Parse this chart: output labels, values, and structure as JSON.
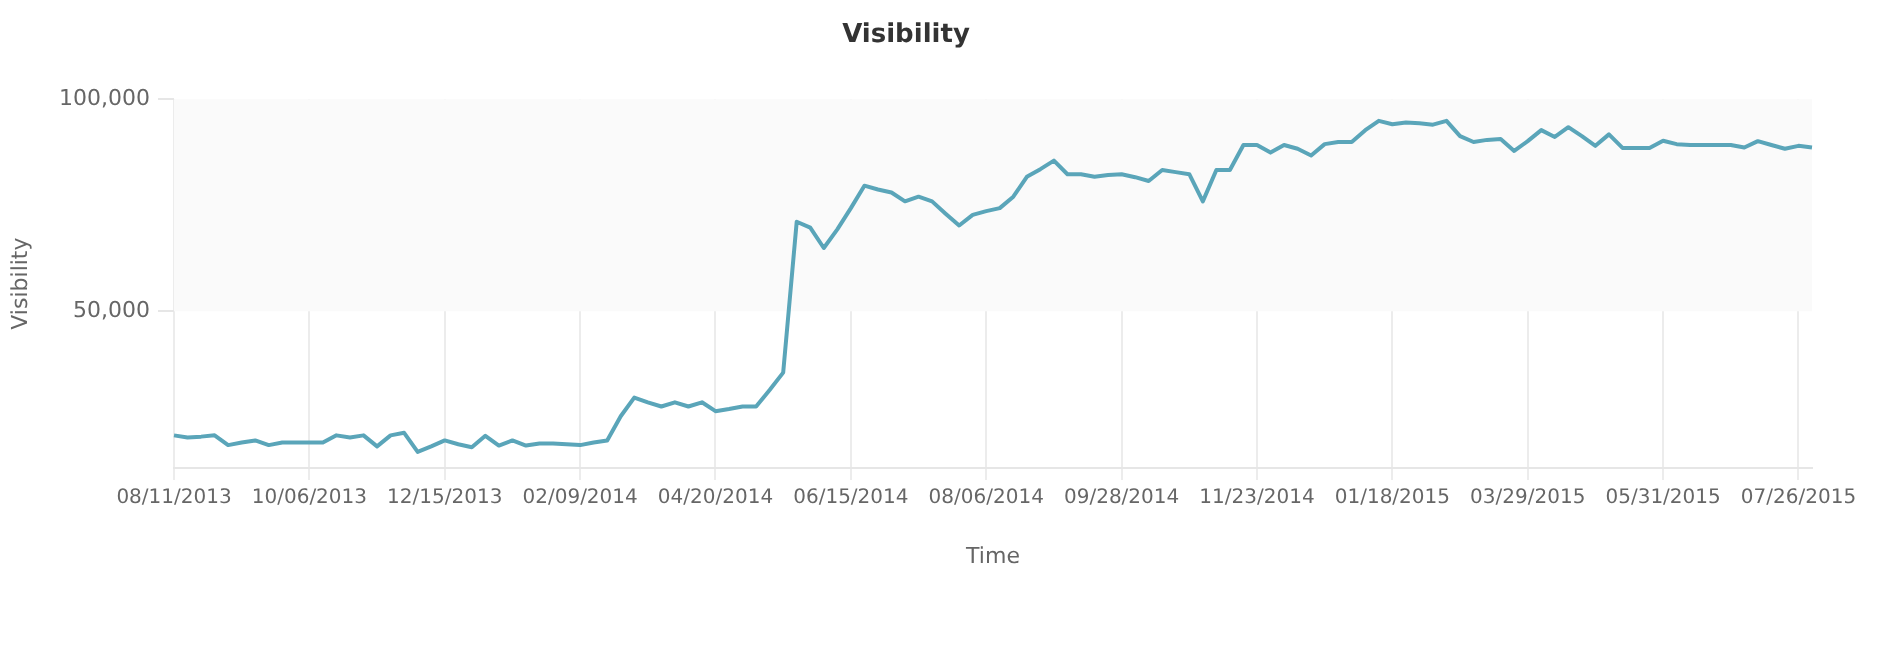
{
  "chart_data": {
    "type": "line",
    "title": "Visibility",
    "xlabel": "Time",
    "ylabel": "Visibility",
    "categories": [
      "08/11/2013",
      null,
      null,
      null,
      null,
      null,
      null,
      null,
      null,
      null,
      "10/06/2013",
      null,
      null,
      null,
      null,
      null,
      null,
      null,
      null,
      null,
      "12/15/2013",
      null,
      null,
      null,
      null,
      null,
      null,
      null,
      null,
      null,
      "02/09/2014",
      null,
      null,
      null,
      null,
      null,
      null,
      null,
      null,
      null,
      "04/20/2014",
      null,
      null,
      null,
      null,
      null,
      null,
      null,
      null,
      null,
      "06/15/2014",
      null,
      null,
      null,
      null,
      null,
      null,
      null,
      null,
      null,
      "08/06/2014",
      null,
      null,
      null,
      null,
      null,
      null,
      null,
      null,
      null,
      "09/28/2014",
      null,
      null,
      null,
      null,
      null,
      null,
      null,
      null,
      null,
      "11/23/2014",
      null,
      null,
      null,
      null,
      null,
      null,
      null,
      null,
      null,
      "01/18/2015",
      null,
      null,
      null,
      null,
      null,
      null,
      null,
      null,
      null,
      "03/29/2015",
      null,
      null,
      null,
      null,
      null,
      null,
      null,
      null,
      null,
      "05/31/2015",
      null,
      null,
      null,
      null,
      null,
      null,
      null,
      null,
      null,
      "07/26/2015",
      null
    ],
    "series": [
      {
        "color": "#5aa5b9",
        "values": [
          20700,
          20200,
          20400,
          20700,
          18400,
          19000,
          19500,
          18400,
          19000,
          19000,
          19000,
          19000,
          20700,
          20200,
          20700,
          18100,
          20700,
          21300,
          16800,
          18100,
          19500,
          18600,
          17900,
          20600,
          18300,
          19500,
          18300,
          18800,
          18800,
          18600,
          18400,
          19000,
          19500,
          25200,
          29600,
          28500,
          27500,
          28500,
          27500,
          28500,
          26400,
          26900,
          27500,
          27500,
          31400,
          35500,
          71100,
          69700,
          64900,
          69300,
          74300,
          79600,
          78700,
          78000,
          75900,
          77000,
          75900,
          73000,
          70200,
          72700,
          73600,
          74300,
          77000,
          81700,
          83500,
          85500,
          82300,
          82300,
          81700,
          82100,
          82300,
          81600,
          80700,
          83300,
          82800,
          82300,
          75900,
          83300,
          83300,
          89200,
          89200,
          87400,
          89200,
          88300,
          86700,
          89400,
          89900,
          89900,
          92700,
          94900,
          94100,
          94500,
          94300,
          94000,
          94900,
          91300,
          89900,
          90400,
          90600,
          87800,
          90100,
          92700,
          91100,
          93400,
          91300,
          89000,
          91700,
          88500,
          88500,
          88500,
          90200,
          89400,
          89200,
          89200,
          89200,
          89200,
          88600,
          90100,
          89200,
          88300,
          89000,
          88600
        ]
      }
    ],
    "ylim": [
      13000,
      100000
    ],
    "yticks": [
      {
        "value": 50000,
        "label": "50,000"
      },
      {
        "value": 100000,
        "label": "100,000"
      }
    ],
    "bands": [
      {
        "axis": "y",
        "from": 50000,
        "to": 100000,
        "color": "#fafafa"
      }
    ],
    "grid": "x",
    "legend": false,
    "marker": "none",
    "line_style": "solid"
  }
}
